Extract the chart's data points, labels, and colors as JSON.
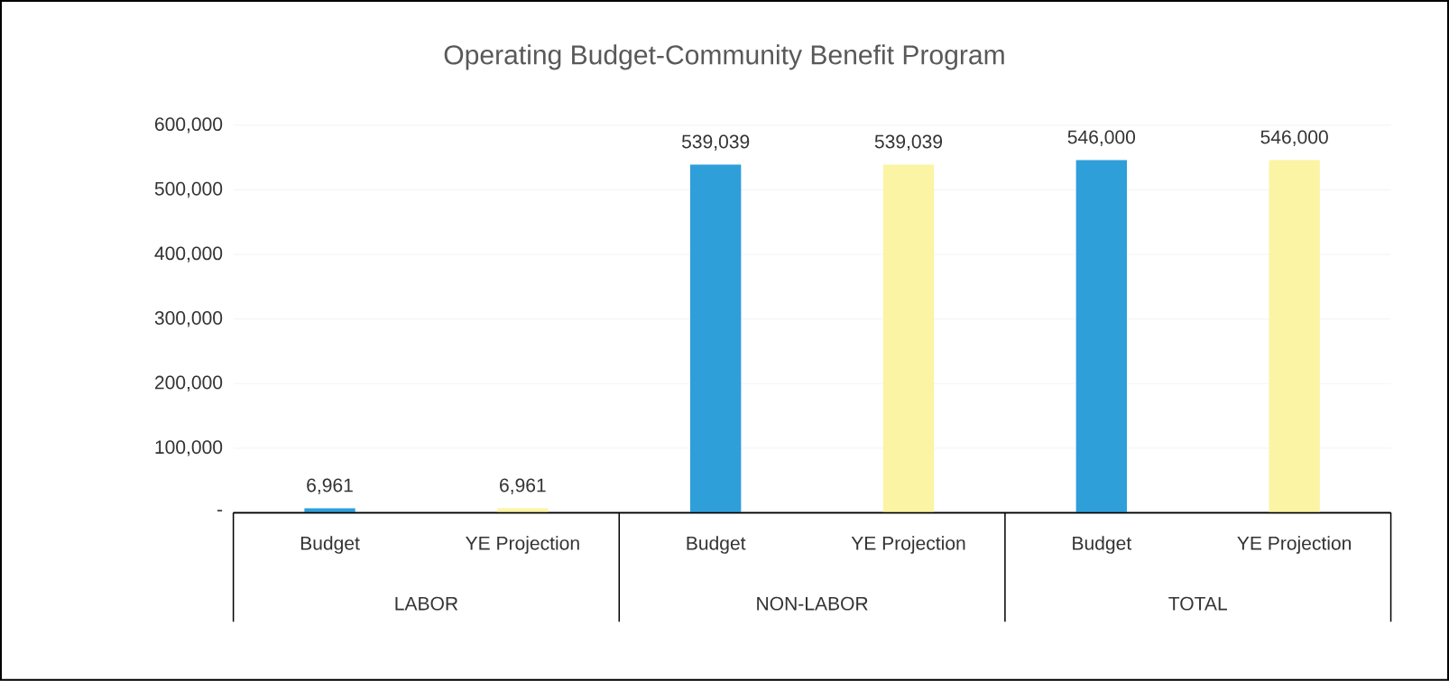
{
  "chart_data": {
    "type": "bar",
    "title": "Operating Budget-Community Benefit Program",
    "categories": [
      "Budget",
      "YE Projection",
      "Budget",
      "YE Projection",
      "Budget",
      "YE Projection"
    ],
    "values": [
      6961,
      6961,
      539039,
      539039,
      546000,
      546000
    ],
    "colors": [
      "#2e9fd9",
      "#fbf4a4",
      "#2e9fd9",
      "#fbf4a4",
      "#2e9fd9",
      "#fbf4a4"
    ],
    "value_labels": [
      "6,961",
      "6,961",
      "539,039",
      "539,039",
      "546,000",
      "546,000"
    ],
    "ylim": [
      0,
      600000
    ],
    "yticks": [
      {
        "value": 0,
        "label": "-"
      },
      {
        "value": 100000,
        "label": "100,000"
      },
      {
        "value": 200000,
        "label": "200,000"
      },
      {
        "value": 300000,
        "label": "300,000"
      },
      {
        "value": 400000,
        "label": "400,000"
      },
      {
        "value": 500000,
        "label": "500,000"
      },
      {
        "value": 600000,
        "label": "600,000"
      }
    ],
    "grid": "y",
    "annotations": [
      "LABOR",
      "NON-LABOR",
      "TOTAL"
    ]
  }
}
